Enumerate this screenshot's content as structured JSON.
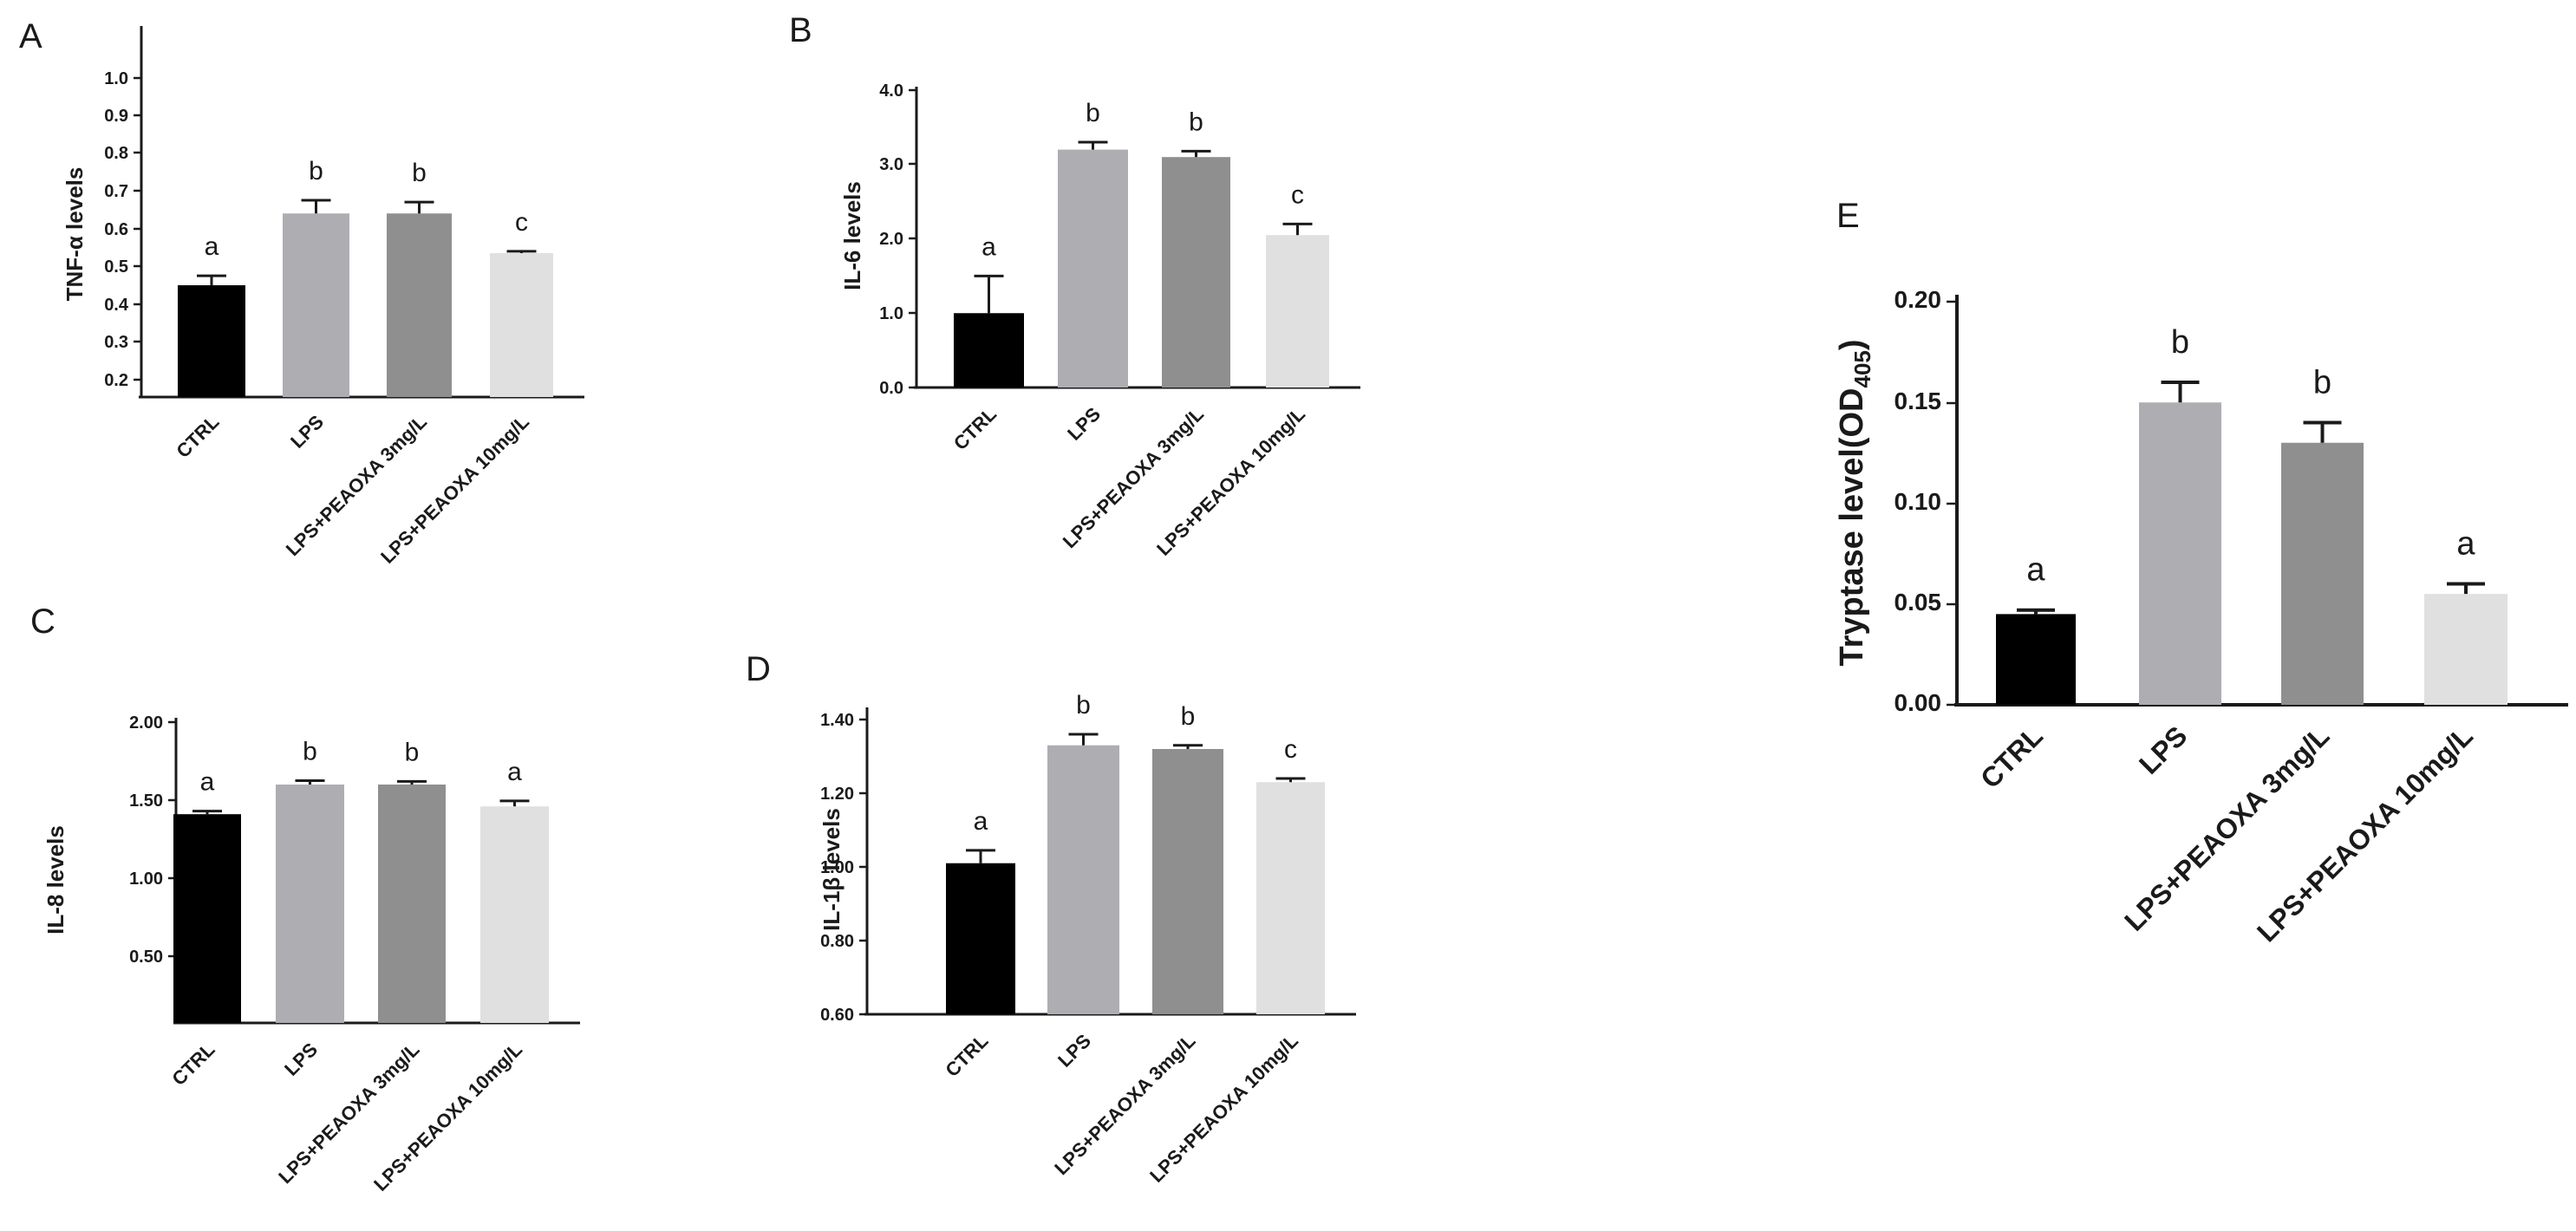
{
  "colors": {
    "axis": "#1a1a1a",
    "bars": [
      "#000000",
      "#aeadb2",
      "#8f8f8f",
      "#e0e0e0"
    ]
  },
  "panels": {
    "A": {
      "letter": "A",
      "ylabel": "TNF-α levels",
      "ticks": [
        "0.2",
        "0.3",
        "0.4",
        "0.5",
        "0.6",
        "0.7",
        "0.8",
        "0.9",
        "1.0"
      ],
      "categories": [
        "CTRL",
        "LPS",
        "LPS+PEAOXA 3mg/L",
        "LPS+PEAOXA 10mg/L"
      ],
      "sig": [
        "a",
        "b",
        "b",
        "c"
      ]
    },
    "B": {
      "letter": "B",
      "ylabel": "IL-6 levels",
      "ticks": [
        "0.0",
        "1.0",
        "2.0",
        "3.0",
        "4.0"
      ],
      "categories": [
        "CTRL",
        "LPS",
        "LPS+PEAOXA 3mg/L",
        "LPS+PEAOXA 10mg/L"
      ],
      "sig": [
        "a",
        "b",
        "b",
        "c"
      ]
    },
    "C": {
      "letter": "C",
      "ylabel": "IL-8 levels",
      "ticks": [
        "0.50",
        "1.00",
        "1.50",
        "2.00"
      ],
      "categories": [
        "CTRL",
        "LPS",
        "LPS+PEAOXA 3mg/L",
        "LPS+PEAOXA 10mg/L"
      ],
      "sig": [
        "a",
        "b",
        "b",
        "a"
      ]
    },
    "D": {
      "letter": "D",
      "ylabel": "IL-1β levels",
      "ticks": [
        "0.60",
        "0.80",
        "1.00",
        "1.20",
        "1.40"
      ],
      "categories": [
        "CTRL",
        "LPS",
        "LPS+PEAOXA 3mg/L",
        "LPS+PEAOXA 10mg/L"
      ],
      "sig": [
        "a",
        "b",
        "b",
        "c"
      ]
    },
    "E": {
      "letter": "E",
      "ylabel": "Tryptase level(OD",
      "ylabel_sub": "405",
      "ylabel_end": ")",
      "ticks": [
        "0.00",
        "0.05",
        "0.10",
        "0.15",
        "0.20"
      ],
      "categories": [
        "CTRL",
        "LPS",
        "LPS+PEAOXA 3mg/L",
        "LPS+PEAOXA 10mg/L"
      ],
      "sig": [
        "a",
        "b",
        "b",
        "a"
      ]
    }
  },
  "chart_data": [
    {
      "panel": "A",
      "type": "bar",
      "ylabel": "TNF-α levels",
      "ylim": [
        0.2,
        1.0
      ],
      "categories": [
        "CTRL",
        "LPS",
        "LPS+PEAOXA 3mg/L",
        "LPS+PEAOXA 10mg/L"
      ],
      "values": [
        0.45,
        0.64,
        0.64,
        0.535
      ],
      "errors": [
        0.025,
        0.035,
        0.03,
        0.005
      ],
      "significance": [
        "a",
        "b",
        "b",
        "c"
      ]
    },
    {
      "panel": "B",
      "type": "bar",
      "ylabel": "IL-6 levels",
      "ylim": [
        0.0,
        4.0
      ],
      "categories": [
        "CTRL",
        "LPS",
        "LPS+PEAOXA 3mg/L",
        "LPS+PEAOXA 10mg/L"
      ],
      "values": [
        1.0,
        3.2,
        3.1,
        2.05
      ],
      "errors": [
        0.5,
        0.1,
        0.08,
        0.15
      ],
      "significance": [
        "a",
        "b",
        "b",
        "c"
      ]
    },
    {
      "panel": "C",
      "type": "bar",
      "ylabel": "IL-8 levels",
      "ylim": [
        0.25,
        2.0
      ],
      "categories": [
        "CTRL",
        "LPS",
        "LPS+PEAOXA 3mg/L",
        "LPS+PEAOXA 10mg/L"
      ],
      "values": [
        1.41,
        1.6,
        1.6,
        1.46
      ],
      "errors": [
        0.02,
        0.025,
        0.02,
        0.035
      ],
      "significance": [
        "a",
        "b",
        "b",
        "a"
      ]
    },
    {
      "panel": "D",
      "type": "bar",
      "ylabel": "IL-1β levels",
      "ylim": [
        0.6,
        1.5
      ],
      "categories": [
        "CTRL",
        "LPS",
        "LPS+PEAOXA 3mg/L",
        "LPS+PEAOXA 10mg/L"
      ],
      "values": [
        1.01,
        1.33,
        1.32,
        1.23
      ],
      "errors": [
        0.035,
        0.03,
        0.01,
        0.01
      ],
      "significance": [
        "a",
        "b",
        "b",
        "c"
      ]
    },
    {
      "panel": "E",
      "type": "bar",
      "ylabel": "Tryptase level(OD405)",
      "ylim": [
        0.0,
        0.2
      ],
      "categories": [
        "CTRL",
        "LPS",
        "LPS+PEAOXA 3mg/L",
        "LPS+PEAOXA 10mg/L"
      ],
      "values": [
        0.045,
        0.15,
        0.13,
        0.055
      ],
      "errors": [
        0.002,
        0.01,
        0.01,
        0.005
      ],
      "significance": [
        "a",
        "b",
        "b",
        "a"
      ]
    }
  ]
}
